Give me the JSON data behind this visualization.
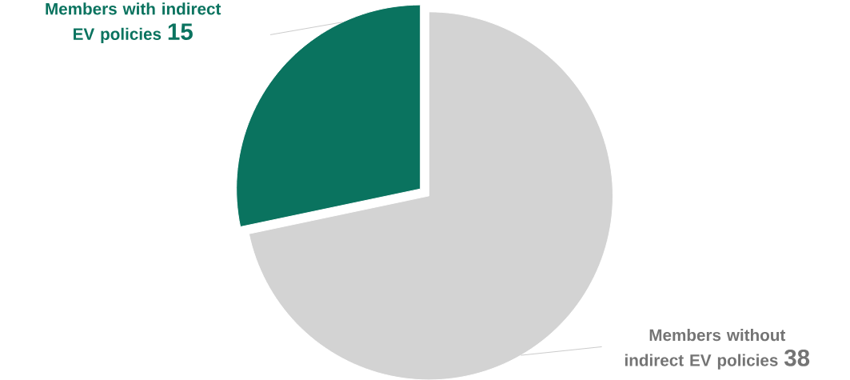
{
  "chart_data": {
    "type": "pie",
    "categories": [
      "Members with indirect EV policies",
      "Members without indirect EV policies"
    ],
    "values": [
      15,
      38
    ],
    "colors": [
      "#0a735f",
      "#d3d3d3"
    ],
    "data_labels": true
  }
}
